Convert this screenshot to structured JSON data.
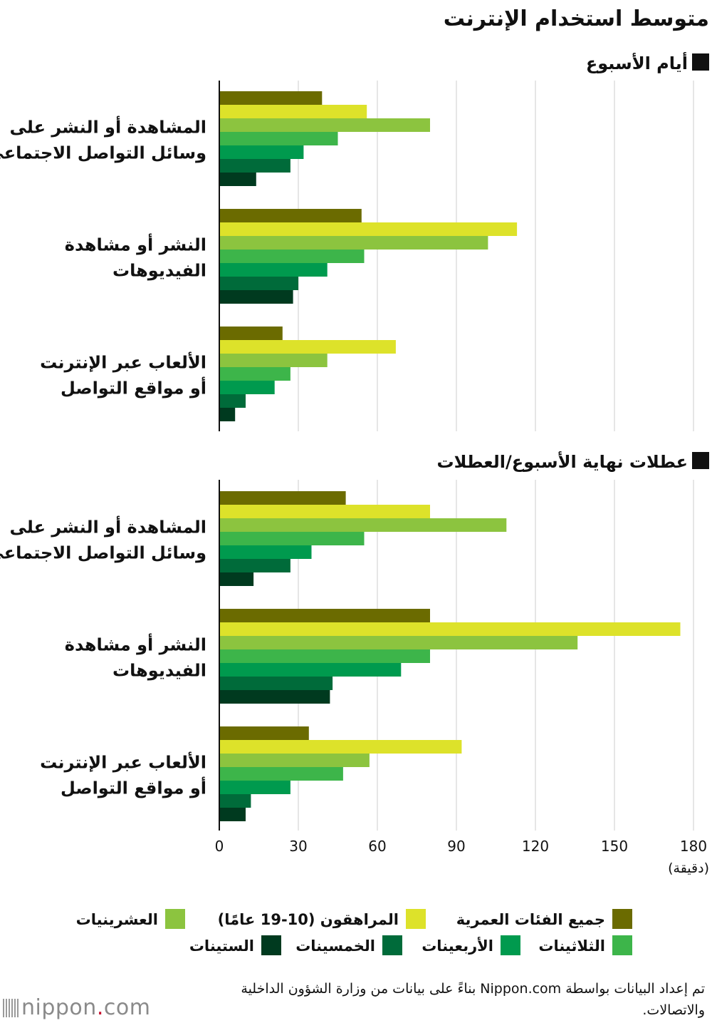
{
  "chart_data": {
    "type": "bar",
    "orientation": "horizontal",
    "title": "متوسط استخدام الإنترنت",
    "xlabel": "(دقيقة)",
    "xlim": [
      0,
      180
    ],
    "xticks": [
      0,
      30,
      60,
      90,
      120,
      150,
      180
    ],
    "grid": true,
    "legend_position": "bottom",
    "categories": [
      [
        "المشاهدة أو النشر على",
        "وسائل التواصل الاجتماعي"
      ],
      [
        "النشر أو مشاهدة",
        "الفيديوهات"
      ],
      [
        "الألعاب عبر الإنترنت",
        "أو مواقع التواصل"
      ]
    ],
    "series": [
      {
        "name": "جميع الفئات العمرية",
        "color": "#6b6b00"
      },
      {
        "name": "المراهقون (10-19 عامًا)",
        "color": "#dde22a"
      },
      {
        "name": "العشرينيات",
        "color": "#8cc43f"
      },
      {
        "name": "الثلاثينات",
        "color": "#3db54a"
      },
      {
        "name": "الأربعينات",
        "color": "#009a4e"
      },
      {
        "name": "الخمسينات",
        "color": "#006b3a"
      },
      {
        "name": "الستينات",
        "color": "#003a1f"
      }
    ],
    "panels": [
      {
        "title": "أيام الأسبوع",
        "values": [
          [
            39,
            56,
            80,
            45,
            32,
            27,
            14
          ],
          [
            54,
            113,
            102,
            55,
            41,
            30,
            28
          ],
          [
            24,
            67,
            41,
            27,
            21,
            10,
            6
          ]
        ]
      },
      {
        "title": "عطلات نهاية الأسبوع/العطلات",
        "values": [
          [
            48,
            80,
            109,
            55,
            35,
            27,
            13
          ],
          [
            80,
            175,
            136,
            80,
            69,
            43,
            42
          ],
          [
            34,
            92,
            57,
            47,
            27,
            12,
            10
          ]
        ]
      }
    ]
  },
  "legend": {
    "order_rows": [
      [
        0,
        1,
        2
      ],
      [
        3,
        4,
        5,
        6
      ]
    ]
  },
  "source_text": "تم إعداد البيانات بواسطة Nippon.com بناءً على بيانات من وزارة الشؤون الداخلية والاتصالات.",
  "logo": {
    "word": "nippon",
    "dot": ".",
    "suffix": "com"
  }
}
